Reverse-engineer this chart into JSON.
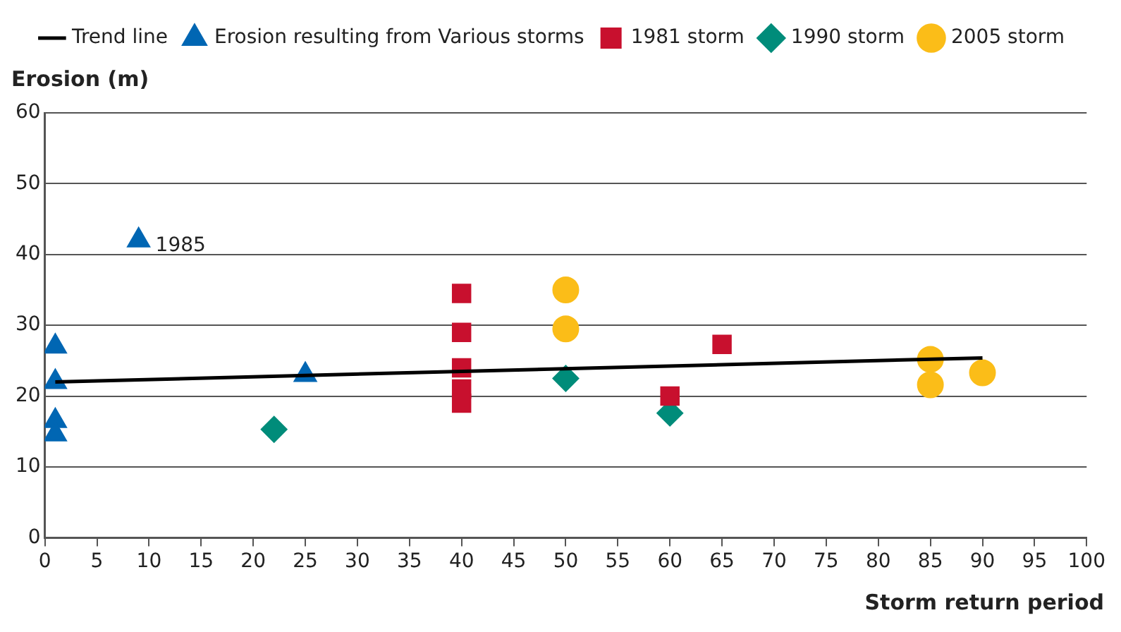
{
  "chart_data": {
    "type": "scatter",
    "xlabel": "Storm return period",
    "ylabel": "Erosion (m)",
    "xlim": [
      0,
      100
    ],
    "ylim": [
      0,
      60
    ],
    "xticks": [
      0,
      5,
      10,
      15,
      20,
      25,
      30,
      35,
      40,
      45,
      50,
      55,
      60,
      65,
      70,
      75,
      80,
      85,
      90,
      95,
      100
    ],
    "yticks": [
      0,
      10,
      20,
      30,
      40,
      50,
      60
    ],
    "grid": "y",
    "legend": "top",
    "annotations": [
      {
        "text": "1985",
        "x": 9,
        "y": 42
      }
    ],
    "series": [
      {
        "name": "Erosion resulting from Various storms",
        "color": "#0066b3",
        "marker": "triangle",
        "x": [
          9,
          1,
          1,
          1,
          1,
          25
        ],
        "values": [
          42,
          27,
          22,
          16.5,
          14.6,
          23
        ]
      },
      {
        "name": "1981 storm",
        "color": "#c8102e",
        "marker": "square",
        "x": [
          40,
          40,
          40,
          40,
          40,
          60,
          65
        ],
        "values": [
          34.5,
          29,
          24,
          21,
          19,
          20,
          27.3
        ]
      },
      {
        "name": "1990 storm",
        "color": "#008c7a",
        "marker": "diamond",
        "x": [
          22,
          50,
          60
        ],
        "values": [
          15.3,
          22.5,
          17.6
        ]
      },
      {
        "name": "2005 storm",
        "color": "#fbbd18",
        "marker": "circle",
        "x": [
          50,
          50,
          85,
          85,
          90
        ],
        "values": [
          35,
          29.5,
          25.2,
          21.6,
          23.3
        ]
      },
      {
        "name": "Trend line",
        "type": "line",
        "color": "#000000",
        "marker": "none",
        "x": [
          1,
          90
        ],
        "values": [
          22,
          25.4
        ]
      }
    ]
  }
}
